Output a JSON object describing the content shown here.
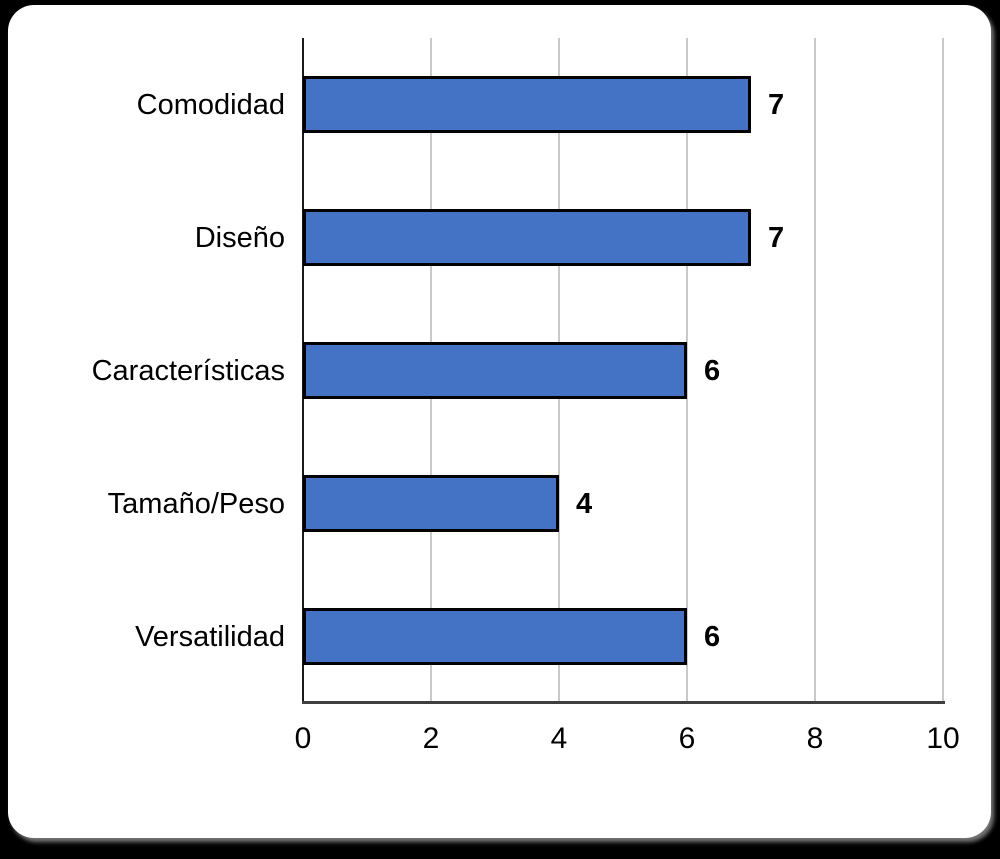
{
  "chart_data": {
    "type": "bar",
    "orientation": "horizontal",
    "title": "",
    "xlabel": "",
    "ylabel": "",
    "categories": [
      "Comodidad",
      "Diseño",
      "Características",
      "Tamaño/Peso",
      "Versatilidad"
    ],
    "values": [
      7,
      7,
      6,
      4,
      6
    ],
    "data_labels": [
      "7",
      "7",
      "6",
      "4",
      "6"
    ],
    "xlim": [
      0,
      10
    ],
    "x_tick_labels": [
      "0",
      "2",
      "4",
      "6",
      "8",
      "10"
    ],
    "x_tick_values": [
      0,
      2,
      4,
      6,
      8,
      10
    ],
    "grid": "vertical gridlines on",
    "legend": "none",
    "colors": {
      "bar_fill": "#4472C4",
      "bar_border": "#000000",
      "gridline": "#C9C9C9",
      "category_axis_line": "#1a1a1a",
      "value_axis_line": "#3f3f3f",
      "text": "#000000",
      "card_background": "#ffffff",
      "page_background": "#000000"
    }
  }
}
